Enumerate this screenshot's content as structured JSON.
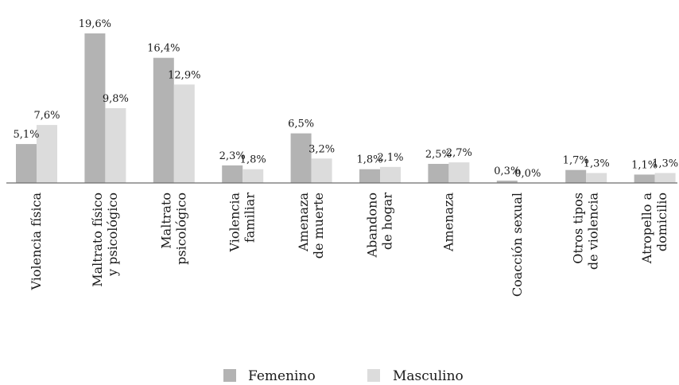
{
  "chart_data": {
    "type": "bar",
    "categories": [
      [
        "Violencia física"
      ],
      [
        "Maltrato físico",
        "y psicológico"
      ],
      [
        "Maltrato",
        "psicológico"
      ],
      [
        "Violencia",
        "familiar"
      ],
      [
        "Amenaza",
        "de muerte"
      ],
      [
        "Abandono",
        "de hogar"
      ],
      [
        "Amenaza"
      ],
      [
        "Coacción sexual"
      ],
      [
        "Otros tipos",
        "de violencia"
      ],
      [
        "Atropello a",
        "domicilio"
      ]
    ],
    "series": [
      {
        "name": "Femenino",
        "color": "#b3b3b3",
        "values": [
          5.1,
          19.6,
          16.4,
          2.3,
          6.5,
          1.8,
          2.5,
          0.3,
          1.7,
          1.1
        ],
        "labels": [
          "5,1%",
          "19,6%",
          "16,4%",
          "2,3%",
          "6,5%",
          "1,8%",
          "2,5%",
          "0,3%",
          "1,7%",
          "1,1%"
        ]
      },
      {
        "name": "Masculino",
        "color": "#dcdcdc",
        "values": [
          7.6,
          9.8,
          12.9,
          1.8,
          3.2,
          2.1,
          2.7,
          0.0,
          1.3,
          1.3
        ],
        "labels": [
          "7,6%",
          "9,8%",
          "12,9%",
          "1,8%",
          "3,2%",
          "2,1%",
          "2,7%",
          "0,0%",
          "1,3%",
          "1,3%"
        ]
      }
    ],
    "ylim": [
      0,
      20
    ],
    "legend_position": "bottom",
    "grid": false
  }
}
